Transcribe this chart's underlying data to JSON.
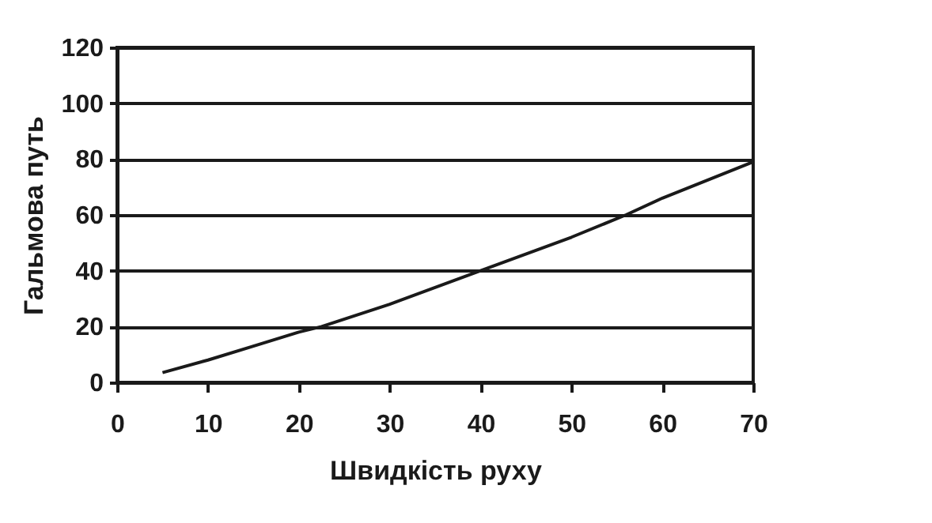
{
  "chart_data": {
    "type": "line",
    "xlabel": "Швидкість руху",
    "ylabel": "Гальмова путь",
    "x": [
      5,
      10,
      15,
      20,
      22.5,
      30,
      40,
      50,
      56,
      60,
      70
    ],
    "series": [
      {
        "color": "#1a1a1a",
        "values": [
          3.5,
          8,
          13,
          18,
          20,
          28,
          40,
          52,
          60,
          66,
          79
        ]
      }
    ],
    "xlim": [
      0,
      70
    ],
    "xticks": [
      0,
      10,
      20,
      30,
      40,
      50,
      60,
      70
    ],
    "ylim": [
      0,
      120
    ],
    "yticks": [
      0,
      20,
      40,
      60,
      80,
      100,
      120
    ],
    "grid": "y",
    "marker": "none",
    "line_style": "solid"
  }
}
